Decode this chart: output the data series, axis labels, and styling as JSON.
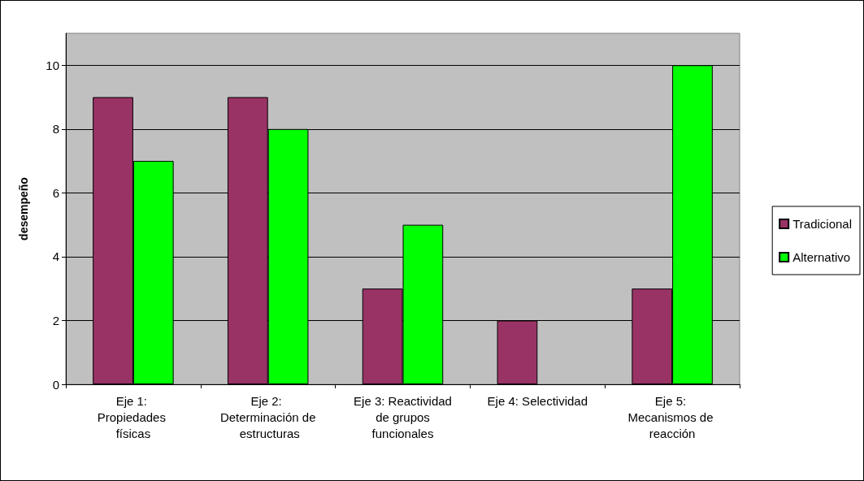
{
  "chart_data": {
    "type": "bar",
    "ylabel": "desempeño",
    "categories": [
      "Eje 1: Propiedades físicas",
      "Eje 2: Determinación de estructuras",
      "Eje 3: Reactividad de grupos funcionales",
      "Eje 4: Selectividad",
      "Eje 5: Mecanismos de reacción"
    ],
    "series": [
      {
        "name": "Tradicional",
        "color": "#993366",
        "values": [
          9,
          9,
          3,
          2,
          3
        ]
      },
      {
        "name": "Alternativo",
        "color": "#00ff00",
        "values": [
          7,
          8,
          5,
          null,
          10
        ]
      }
    ],
    "ylim": [
      0,
      11
    ],
    "yticks": [
      0,
      2,
      4,
      6,
      8,
      10
    ],
    "grid": "y",
    "legend": "right"
  }
}
